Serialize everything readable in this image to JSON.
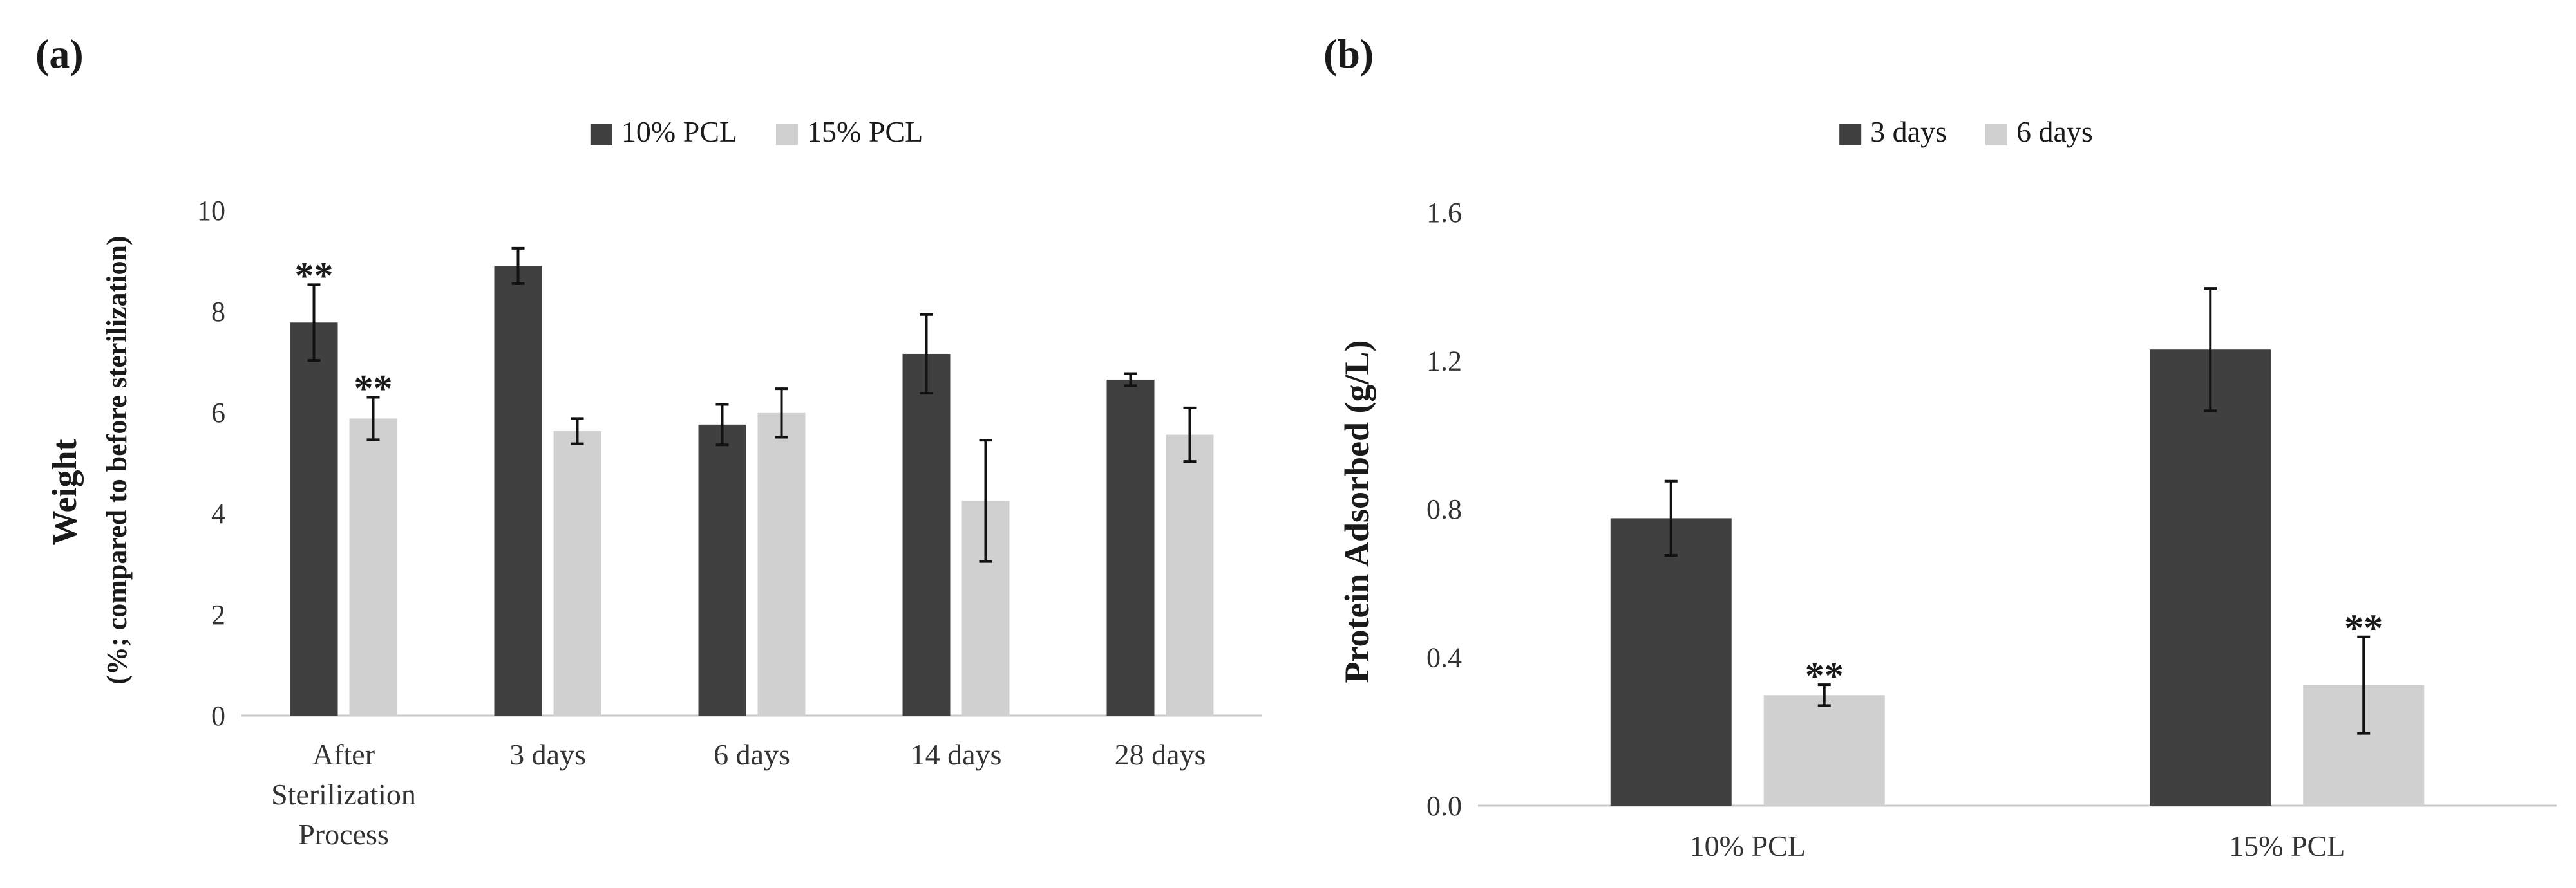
{
  "chart_data": [
    {
      "type": "bar",
      "panel_label": "(a)",
      "title": "",
      "xlabel": "",
      "ylabel": "Weight",
      "ylabel_sub": "(%; compared to before sterilization)",
      "ylim": [
        0,
        10
      ],
      "yticks": [
        "0",
        "2",
        "4",
        "6",
        "8",
        "10"
      ],
      "grid": false,
      "legend_position": "top-center",
      "categories": [
        "After Sterilization Process",
        "3 days",
        "6 days",
        "14 days",
        "28 days"
      ],
      "category_lines": [
        [
          "After",
          "Sterilization",
          "Process"
        ],
        [
          "3 days"
        ],
        [
          "6 days"
        ],
        [
          "14 days"
        ],
        [
          "28 days"
        ]
      ],
      "series": [
        {
          "name": "10% PCL",
          "color": "#404040",
          "values": [
            7.78,
            8.9,
            5.76,
            7.16,
            6.65
          ],
          "errors": [
            0.75,
            0.35,
            0.4,
            0.78,
            0.12
          ],
          "annotations": [
            "**",
            "",
            "",
            "",
            ""
          ]
        },
        {
          "name": "15% PCL",
          "color": "#d0d0d0",
          "values": [
            5.88,
            5.63,
            5.99,
            4.25,
            5.56
          ],
          "errors": [
            0.42,
            0.25,
            0.48,
            1.2,
            0.53
          ],
          "annotations": [
            "**",
            "",
            "",
            "",
            ""
          ]
        }
      ]
    },
    {
      "type": "bar",
      "panel_label": "(b)",
      "title": "",
      "xlabel": "",
      "ylabel": "Protein Adsorbed (g/L)",
      "ylim": [
        0,
        1.6
      ],
      "yticks": [
        "0.0",
        "0.4",
        "0.8",
        "1.2",
        "1.6"
      ],
      "grid": false,
      "legend_position": "top-center",
      "categories": [
        "10% PCL",
        "15% PCL"
      ],
      "category_lines": [
        [
          "10% PCL"
        ],
        [
          "15% PCL"
        ]
      ],
      "series": [
        {
          "name": "3 days",
          "color": "#404040",
          "values": [
            0.775,
            1.23
          ],
          "errors": [
            0.1,
            0.165
          ],
          "annotations": [
            "",
            ""
          ]
        },
        {
          "name": "6 days",
          "color": "#d0d0d0",
          "values": [
            0.298,
            0.325
          ],
          "errors": [
            0.028,
            0.13
          ],
          "annotations": [
            "**",
            "**"
          ]
        }
      ]
    }
  ]
}
